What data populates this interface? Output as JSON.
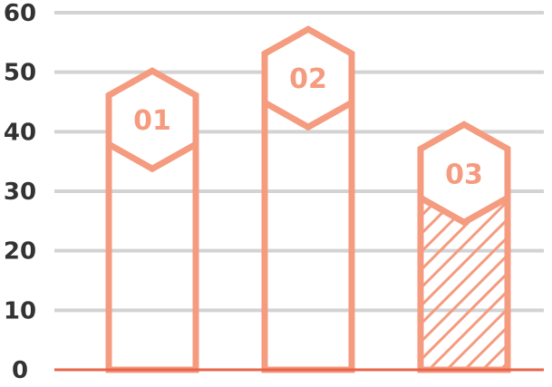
{
  "chart_data": {
    "type": "bar",
    "categories": [
      "01",
      "02",
      "03"
    ],
    "values": [
      42,
      49,
      33
    ],
    "ylim": [
      0,
      60
    ],
    "yticks": [
      0,
      10,
      20,
      30,
      40,
      50,
      60
    ],
    "grid": true,
    "hatched_category": "03",
    "colors": {
      "bar": "#f59b7f",
      "grid": "#d3d3d3",
      "baseline": "#e8644a",
      "tick_text": "#333333"
    }
  }
}
